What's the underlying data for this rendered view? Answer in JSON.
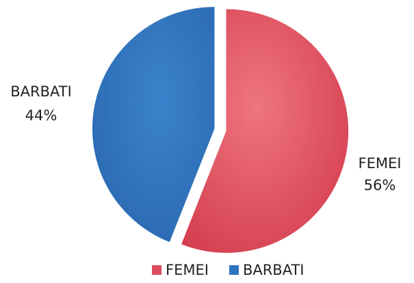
{
  "chart_data": {
    "type": "pie",
    "categories": [
      "FEMEI",
      "BARBATI"
    ],
    "values": [
      56,
      44
    ],
    "value_labels": [
      "56%",
      "44%"
    ],
    "colors": [
      "#dc4c5c",
      "#2f74bf"
    ],
    "legend": "bottom"
  }
}
